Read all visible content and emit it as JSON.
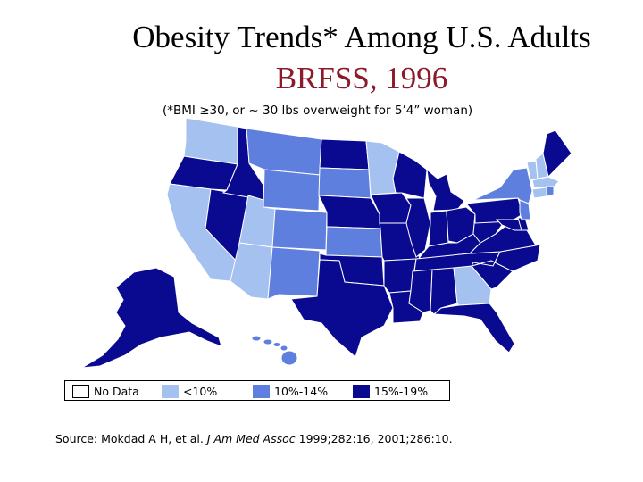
{
  "title": "Obesity Trends* Among U.S. Adults",
  "subtitle": "BRFSS, 1996",
  "footnote": "(*BMI ≥30, or ~ 30 lbs overweight for 5’4” woman)",
  "colors": {
    "no_data": "#ffffff",
    "lt10": "#a5c1ef",
    "10_14": "#5f7fdf",
    "15_19": "#0a0a90",
    "border": "#ffffff"
  },
  "legend": [
    {
      "label": "No Data",
      "category": "no_data"
    },
    {
      "label": "<10%",
      "category": "lt10"
    },
    {
      "label": "10%-14%",
      "category": "10_14"
    },
    {
      "label": "15%-19%",
      "category": "15_19"
    }
  ],
  "states": {
    "WA": "lt10",
    "OR": "15_19",
    "CA": "lt10",
    "NV": "15_19",
    "ID": "15_19",
    "MT": "10_14",
    "WY": "10_14",
    "UT": "lt10",
    "AZ": "lt10",
    "CO": "10_14",
    "NM": "10_14",
    "ND": "15_19",
    "SD": "10_14",
    "NE": "15_19",
    "KS": "10_14",
    "OK": "15_19",
    "TX": "15_19",
    "MN": "lt10",
    "IA": "15_19",
    "MO": "15_19",
    "AR": "15_19",
    "LA": "15_19",
    "WI": "15_19",
    "IL": "15_19",
    "MI": "15_19",
    "IN": "15_19",
    "OH": "15_19",
    "KY": "15_19",
    "TN": "15_19",
    "MS": "15_19",
    "AL": "15_19",
    "GA": "lt10",
    "FL": "15_19",
    "SC": "15_19",
    "NC": "15_19",
    "VA": "15_19",
    "WV": "15_19",
    "PA": "15_19",
    "NY": "10_14",
    "VT": "lt10",
    "NH": "lt10",
    "ME": "15_19",
    "MA": "lt10",
    "RI": "10_14",
    "CT": "lt10",
    "NJ": "10_14",
    "DE": "15_19",
    "MD": "15_19",
    "AK": "15_19",
    "HI": "10_14"
  },
  "source": {
    "prefix": "Source: Mokdad A H, et al. ",
    "journal": "J Am Med Assoc",
    "suffix": " 1999;282:16, 2001;286:10."
  }
}
